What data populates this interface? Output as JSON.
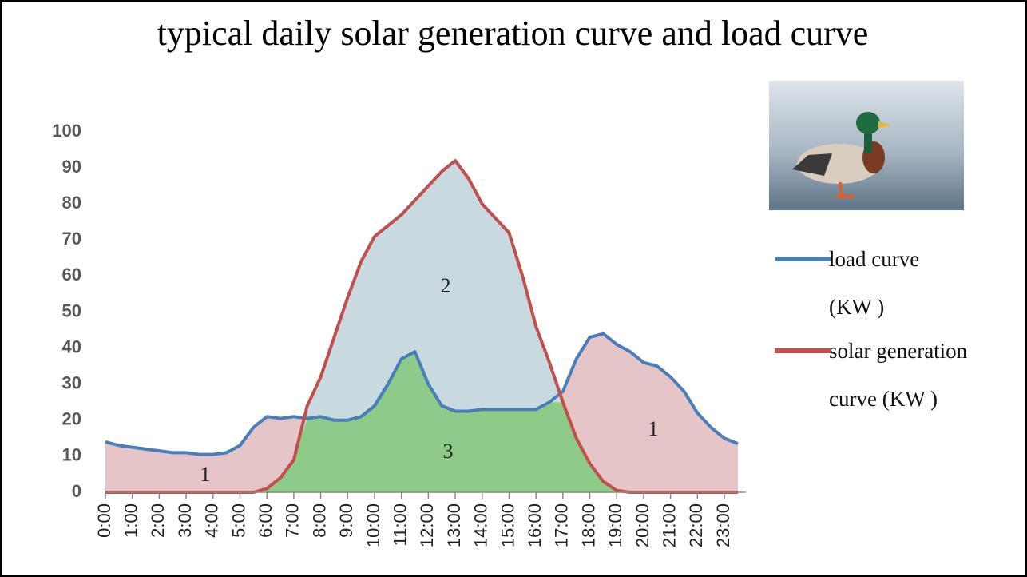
{
  "chart_data": {
    "type": "area",
    "title": "typical daily solar generation curve and load curve",
    "x": [
      0,
      0.5,
      1,
      1.5,
      2,
      2.5,
      3,
      3.5,
      4,
      4.5,
      5,
      5.5,
      6,
      6.5,
      7,
      7.5,
      8,
      8.5,
      9,
      9.5,
      10,
      10.5,
      11,
      11.5,
      12,
      12.5,
      13,
      13.5,
      14,
      14.5,
      15,
      15.5,
      16,
      16.5,
      17,
      17.5,
      18,
      18.5,
      19,
      19.5,
      20,
      20.5,
      21,
      21.5,
      22,
      22.5,
      23,
      23.5
    ],
    "series": [
      {
        "name": "load curve (KW )",
        "color": "#4a7ebb",
        "fill": "#e6c5c9",
        "values": [
          14,
          13,
          12.5,
          12,
          11.5,
          11,
          11,
          10.5,
          10.5,
          11,
          13,
          18,
          21,
          20.5,
          21,
          20.5,
          21,
          20,
          20,
          21,
          24,
          30,
          37,
          39,
          30,
          24,
          22.5,
          22.5,
          23,
          23,
          23,
          23,
          23,
          25,
          28,
          37,
          43,
          44,
          41,
          39,
          36,
          35,
          32,
          28,
          22,
          18,
          15,
          13.5
        ]
      },
      {
        "name": "solar generation curve (KW )",
        "color": "#c0504d",
        "fill": "#c8dadf",
        "values": [
          0,
          0,
          0,
          0,
          0,
          0,
          0,
          0,
          0,
          0,
          0,
          0,
          1,
          4,
          9,
          24,
          32,
          43,
          54,
          64,
          71,
          74,
          77,
          81,
          85,
          89,
          92,
          87,
          80,
          76,
          72,
          60,
          46,
          36,
          25,
          15,
          8,
          3,
          0.5,
          0,
          0,
          0,
          0,
          0,
          0,
          0,
          0,
          0
        ]
      }
    ],
    "overlap_color": "#8fcb88",
    "annotations": [
      "1",
      "2",
      "3",
      "1"
    ],
    "xlim": [
      0,
      23.8
    ],
    "xticks": [
      {
        "value": 0,
        "label": "0:00"
      },
      {
        "value": 1,
        "label": "1:00"
      },
      {
        "value": 2,
        "label": "2:00"
      },
      {
        "value": 3,
        "label": "3:00"
      },
      {
        "value": 4,
        "label": "4:00"
      },
      {
        "value": 5,
        "label": "5:00"
      },
      {
        "value": 6,
        "label": "6:00"
      },
      {
        "value": 7,
        "label": "7:00"
      },
      {
        "value": 8,
        "label": "8:00"
      },
      {
        "value": 9,
        "label": "9:00"
      },
      {
        "value": 10,
        "label": "10:00"
      },
      {
        "value": 11,
        "label": "11:00"
      },
      {
        "value": 12,
        "label": "12:00"
      },
      {
        "value": 13,
        "label": "13:00"
      },
      {
        "value": 14,
        "label": "14:00"
      },
      {
        "value": 15,
        "label": "15:00"
      },
      {
        "value": 16,
        "label": "16:00"
      },
      {
        "value": 17,
        "label": "17:00"
      },
      {
        "value": 18,
        "label": "18:00"
      },
      {
        "value": 19,
        "label": "19:00"
      },
      {
        "value": 20,
        "label": "20:00"
      },
      {
        "value": 21,
        "label": "21:00"
      },
      {
        "value": 22,
        "label": "22:00"
      },
      {
        "value": 23,
        "label": "23:00"
      }
    ],
    "ylim": [
      0,
      100
    ],
    "yticks": [
      0,
      10,
      20,
      30,
      40,
      50,
      60,
      70,
      80,
      90,
      100
    ],
    "grid": false
  }
}
